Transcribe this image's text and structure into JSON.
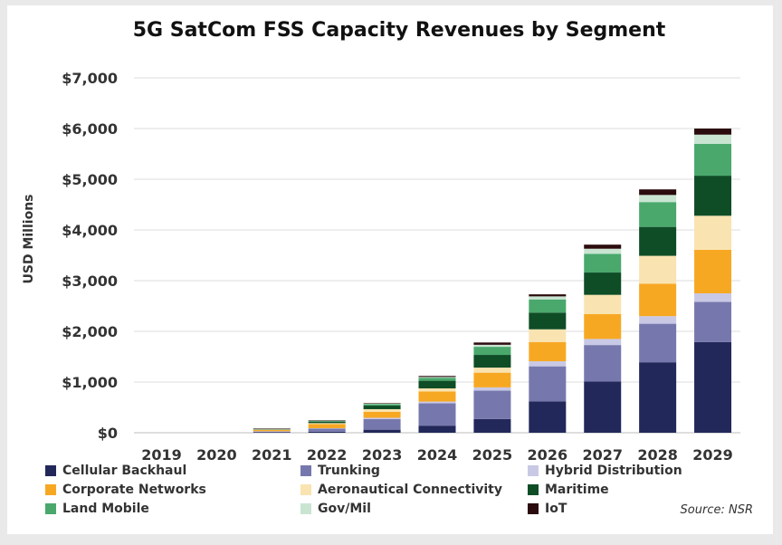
{
  "chart_data": {
    "type": "bar",
    "stacked": true,
    "title": "5G SatCom FSS Capacity Revenues by Segment",
    "ylabel": "USD Millions",
    "xlabel": "",
    "ylim": [
      0,
      7000
    ],
    "yticks": [
      0,
      1000,
      2000,
      3000,
      4000,
      5000,
      6000,
      7000
    ],
    "ytick_labels": [
      "$0",
      "$1,000",
      "$2,000",
      "$3,000",
      "$4,000",
      "$5,000",
      "$6,000",
      "$7,000"
    ],
    "grid": true,
    "legend_position": "bottom",
    "categories": [
      "2019",
      "2020",
      "2021",
      "2022",
      "2023",
      "2024",
      "2025",
      "2026",
      "2027",
      "2028",
      "2029"
    ],
    "series": [
      {
        "name": "Cellular Backhaul",
        "color": "#22285a",
        "values": [
          0,
          0,
          10,
          20,
          60,
          140,
          270,
          620,
          1010,
          1390,
          1790
        ]
      },
      {
        "name": "Trunking",
        "color": "#7678ad",
        "values": [
          0,
          0,
          15,
          60,
          210,
          440,
          560,
          690,
          720,
          760,
          790
        ]
      },
      {
        "name": "Hybrid Distribution",
        "color": "#c9c9e6",
        "values": [
          0,
          0,
          5,
          10,
          25,
          35,
          65,
          100,
          120,
          150,
          170
        ]
      },
      {
        "name": "Corporate Networks",
        "color": "#f7a823",
        "values": [
          0,
          0,
          25,
          80,
          120,
          200,
          290,
          380,
          490,
          640,
          860
        ]
      },
      {
        "name": "Aeronautical Connectivity",
        "color": "#f9e3b0",
        "values": [
          0,
          0,
          10,
          20,
          50,
          60,
          100,
          250,
          380,
          550,
          670
        ]
      },
      {
        "name": "Maritime",
        "color": "#0e4d26",
        "values": [
          0,
          0,
          10,
          30,
          70,
          150,
          250,
          330,
          440,
          570,
          790
        ]
      },
      {
        "name": "Land Mobile",
        "color": "#4aa86c",
        "values": [
          0,
          0,
          5,
          15,
          30,
          60,
          160,
          260,
          370,
          490,
          630
        ]
      },
      {
        "name": "Gov/Mil",
        "color": "#c9e5d2",
        "values": [
          0,
          0,
          2,
          5,
          10,
          15,
          40,
          60,
          100,
          140,
          180
        ]
      },
      {
        "name": "IoT",
        "color": "#2b0b0d",
        "values": [
          0,
          0,
          3,
          5,
          10,
          20,
          45,
          40,
          80,
          110,
          120
        ]
      }
    ]
  },
  "source": "Source: NSR"
}
